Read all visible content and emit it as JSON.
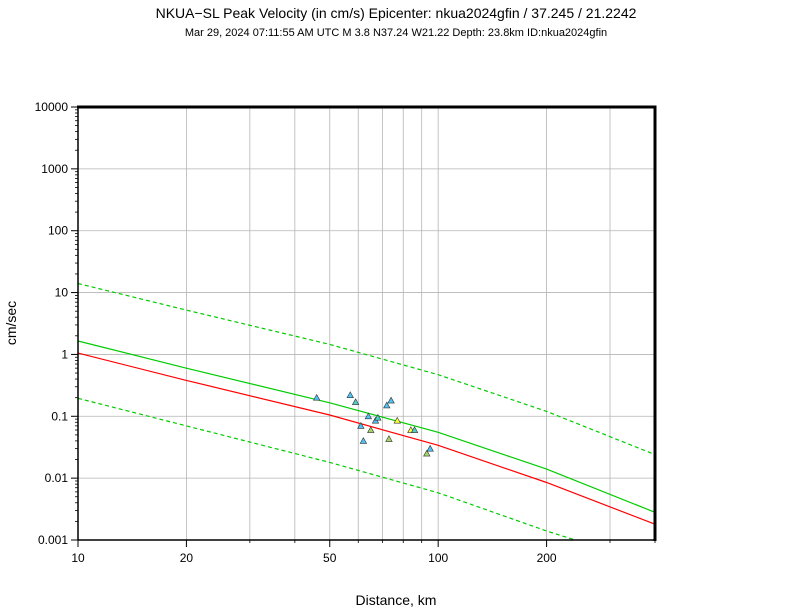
{
  "chart_data": {
    "type": "scatter",
    "title": "NKUA−SL Peak Velocity (in cm/s) Epicenter: nkua2024gfin / 37.245 / 21.2242",
    "subtitle": "Mar 29, 2024 07:11:55 AM UTC   M 3.8   N37.24 W21.22   Depth: 23.8km   ID:nkua2024gfin",
    "xlabel": "Distance, km",
    "ylabel": "cm/sec",
    "xscale": "log",
    "yscale": "log",
    "xlim": [
      10,
      400
    ],
    "ylim": [
      0.001,
      10000
    ],
    "grid": true,
    "x_ticks": [
      {
        "value": 10,
        "label": "10"
      },
      {
        "value": 20,
        "label": "20"
      },
      {
        "value": 50,
        "label": "50"
      },
      {
        "value": 100,
        "label": "100"
      },
      {
        "value": 200,
        "label": "200"
      }
    ],
    "y_ticks": [
      {
        "value": 0.001,
        "label": "0.001"
      },
      {
        "value": 0.01,
        "label": "0.01"
      },
      {
        "value": 0.1,
        "label": "0.1"
      },
      {
        "value": 1,
        "label": "1"
      },
      {
        "value": 10,
        "label": "10"
      },
      {
        "value": 100,
        "label": "100"
      },
      {
        "value": 1000,
        "label": "1000"
      },
      {
        "value": 10000,
        "label": "10000"
      }
    ],
    "series": [
      {
        "name": "prediction-upper",
        "style": "dashed",
        "color": "#00cc00",
        "x": [
          10,
          20,
          50,
          100,
          200,
          400
        ],
        "y": [
          14,
          5.2,
          1.45,
          0.47,
          0.12,
          0.024
        ]
      },
      {
        "name": "prediction-median",
        "style": "solid",
        "color": "#00cc00",
        "x": [
          10,
          20,
          50,
          100,
          200,
          400
        ],
        "y": [
          1.65,
          0.6,
          0.165,
          0.055,
          0.014,
          0.0028
        ]
      },
      {
        "name": "regression",
        "style": "solid",
        "color": "#ff0000",
        "x": [
          10,
          20,
          50,
          100,
          200,
          400
        ],
        "y": [
          1.05,
          0.38,
          0.105,
          0.034,
          0.0085,
          0.0018
        ]
      },
      {
        "name": "prediction-lower",
        "style": "dashed",
        "color": "#00cc00",
        "x": [
          10,
          20,
          50,
          100,
          200,
          240
        ],
        "y": [
          0.195,
          0.07,
          0.018,
          0.0058,
          0.0014,
          0.001
        ]
      }
    ],
    "stations": [
      {
        "x": 46,
        "y": 0.2,
        "color": "#4fc3f7"
      },
      {
        "x": 57,
        "y": 0.22,
        "color": "#4fc3f7"
      },
      {
        "x": 59,
        "y": 0.17,
        "color": "#4dd0c8"
      },
      {
        "x": 61,
        "y": 0.07,
        "color": "#4fc3f7"
      },
      {
        "x": 62,
        "y": 0.04,
        "color": "#4fc3f7"
      },
      {
        "x": 64,
        "y": 0.1,
        "color": "#4fc3f7"
      },
      {
        "x": 65,
        "y": 0.06,
        "color": "#a5d66b"
      },
      {
        "x": 67,
        "y": 0.085,
        "color": "#4fc3f7"
      },
      {
        "x": 68,
        "y": 0.095,
        "color": "#4dd0c8"
      },
      {
        "x": 72,
        "y": 0.15,
        "color": "#4fc3f7"
      },
      {
        "x": 73,
        "y": 0.043,
        "color": "#a5d66b"
      },
      {
        "x": 74,
        "y": 0.18,
        "color": "#4fc3f7"
      },
      {
        "x": 77,
        "y": 0.085,
        "color": "#ffff33"
      },
      {
        "x": 84,
        "y": 0.06,
        "color": "#ffff33"
      },
      {
        "x": 86,
        "y": 0.06,
        "color": "#4dd0c8"
      },
      {
        "x": 93,
        "y": 0.025,
        "color": "#a5d66b"
      },
      {
        "x": 95,
        "y": 0.03,
        "color": "#4fc3f7"
      }
    ]
  }
}
